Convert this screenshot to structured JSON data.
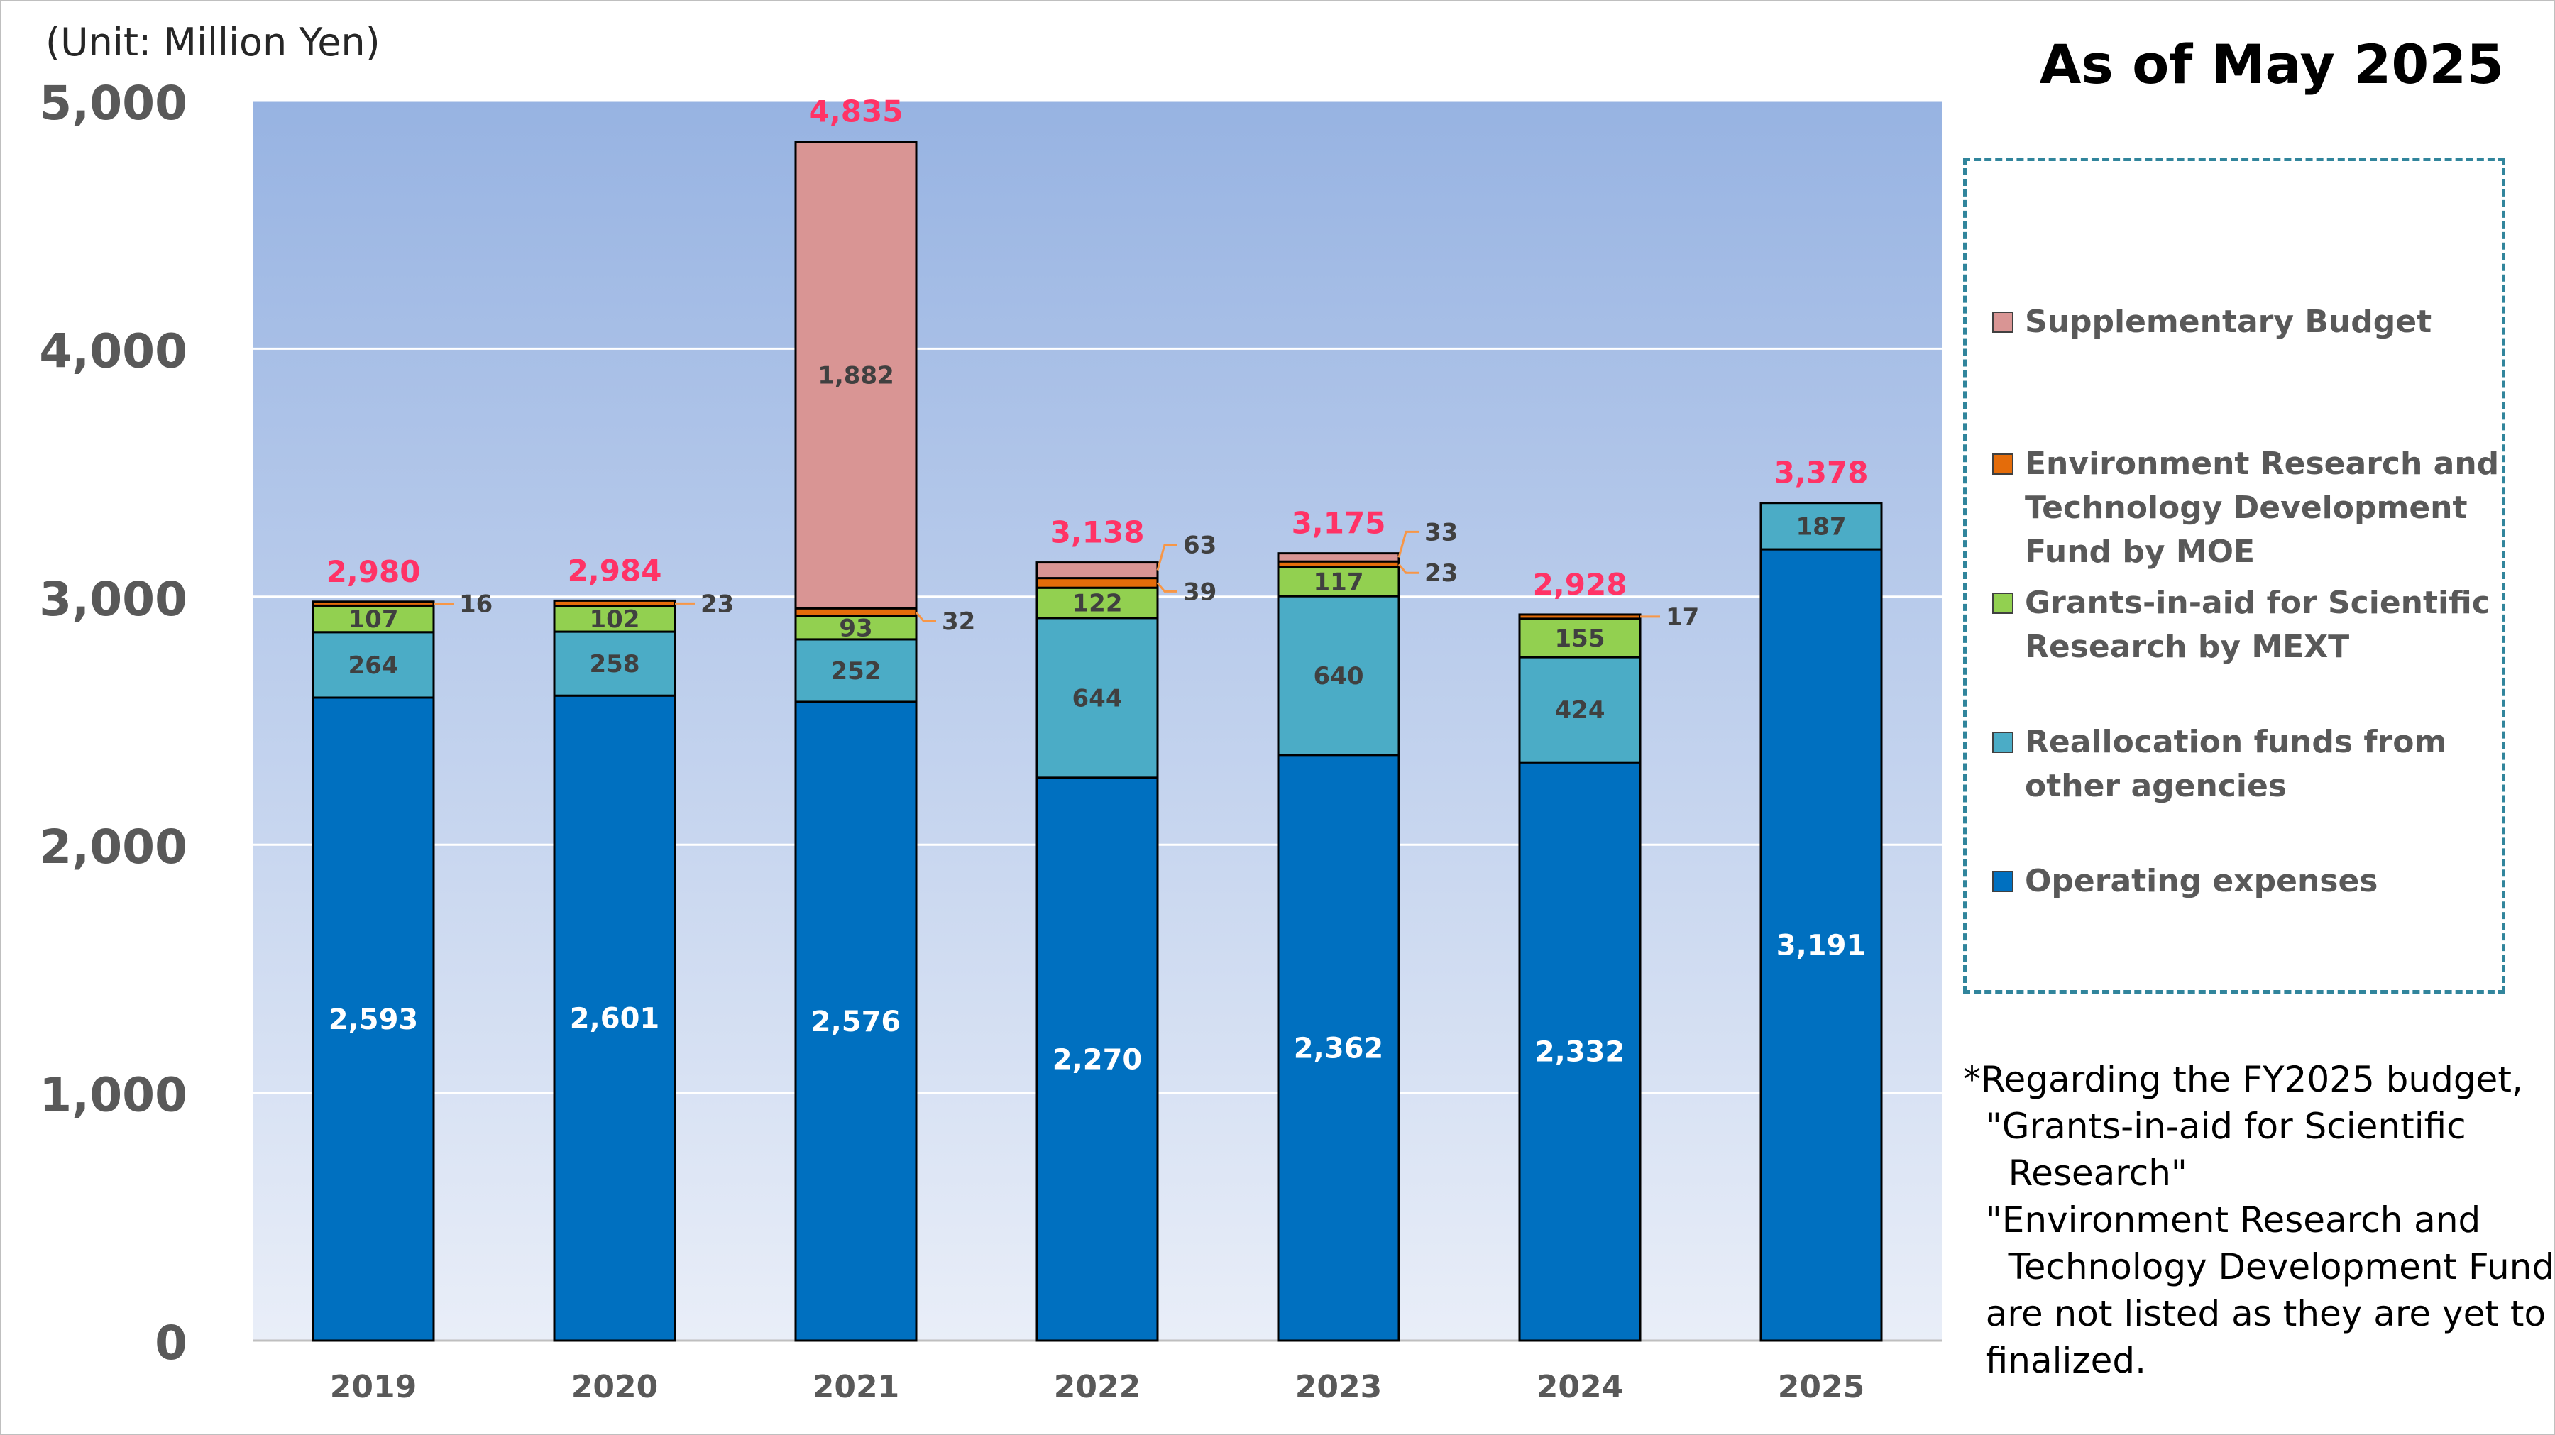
{
  "unit_label": "(Unit: Million Yen)",
  "as_of": "As of May 2025",
  "legend": [
    {
      "label": "Supplementary Budget",
      "color": "#d99594"
    },
    {
      "label": "Environment Research and Technology Development Fund by MOE",
      "color": "#e46c0a"
    },
    {
      "label": "Grants-in-aid for Scientific Research by MEXT",
      "color": "#92d050"
    },
    {
      "label": "Reallocation funds from other agencies",
      "color": "#4bacc6"
    },
    {
      "label": "Operating expenses",
      "color": "#0070c0"
    }
  ],
  "note": [
    "*Regarding the FY2025 budget,",
    "  \"Grants-in-aid for Scientific",
    "    Research\"",
    "  \"Environment Research and",
    "    Technology Development Fund\"",
    "  are not listed as they are yet to be",
    "  finalized."
  ],
  "chart_data": {
    "type": "bar",
    "stacked": true,
    "categories": [
      "2019",
      "2020",
      "2021",
      "2022",
      "2023",
      "2024",
      "2025"
    ],
    "series": [
      {
        "name": "Operating expenses",
        "color": "#0070c0",
        "values": [
          2593,
          2601,
          2576,
          2270,
          2362,
          2332,
          3191
        ]
      },
      {
        "name": "Reallocation funds from other agencies",
        "color": "#4bacc6",
        "values": [
          264,
          258,
          252,
          644,
          640,
          424,
          187
        ]
      },
      {
        "name": "Grants-in-aid for Scientific Research by MEXT",
        "color": "#92d050",
        "values": [
          107,
          102,
          93,
          122,
          117,
          155,
          null
        ]
      },
      {
        "name": "Environment Research and Technology Development Fund by MOE",
        "color": "#e46c0a",
        "values": [
          16,
          23,
          32,
          39,
          23,
          17,
          null
        ]
      },
      {
        "name": "Supplementary Budget",
        "color": "#d99594",
        "values": [
          null,
          null,
          1882,
          63,
          33,
          null,
          null
        ]
      }
    ],
    "totals": [
      2980,
      2984,
      4835,
      3138,
      3175,
      2928,
      3378
    ],
    "total_color": "#ff3366",
    "ylim": [
      0,
      5000
    ],
    "yticks": [
      0,
      1000,
      2000,
      3000,
      4000,
      5000
    ],
    "ytick_labels": [
      "0",
      "1,000",
      "2,000",
      "3,000",
      "4,000",
      "5,000"
    ],
    "grid": true,
    "legend_position": "right"
  }
}
